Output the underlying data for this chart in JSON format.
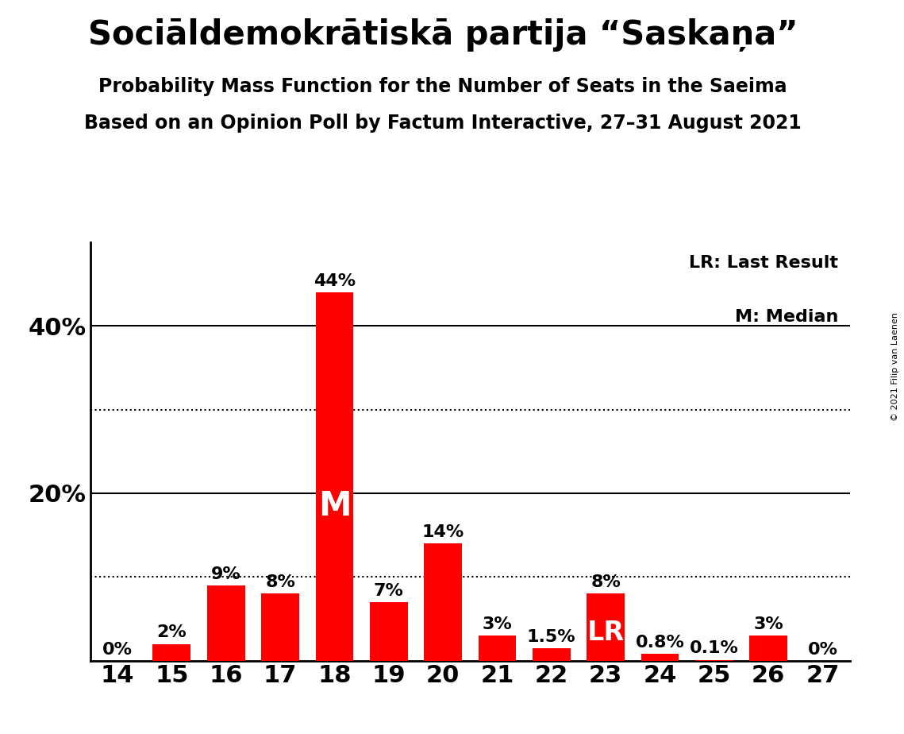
{
  "title": "Sociāldemokrātiskā partija “Saskaņa”",
  "subtitle": "Probability Mass Function for the Number of Seats in the Saeima",
  "subsubtitle": "Based on an Opinion Poll by Factum Interactive, 27–31 August 2021",
  "copyright": "© 2021 Filip van Laenen",
  "seats": [
    14,
    15,
    16,
    17,
    18,
    19,
    20,
    21,
    22,
    23,
    24,
    25,
    26,
    27
  ],
  "values": [
    0.0,
    2.0,
    9.0,
    8.0,
    44.0,
    7.0,
    14.0,
    3.0,
    1.5,
    8.0,
    0.8,
    0.1,
    3.0,
    0.0
  ],
  "labels": [
    "0%",
    "2%",
    "9%",
    "8%",
    "44%",
    "7%",
    "14%",
    "3%",
    "1.5%",
    "8%",
    "0.8%",
    "0.1%",
    "3%",
    "0%"
  ],
  "bar_color": "#ff0000",
  "lr_seat": 23,
  "median_seat": 18,
  "ylim": [
    0,
    50
  ],
  "solid_gridlines": [
    20,
    40
  ],
  "dotted_gridlines": [
    10,
    30
  ],
  "background_color": "#ffffff",
  "title_fontsize": 30,
  "subtitle_fontsize": 17,
  "subsubtitle_fontsize": 17,
  "axis_fontsize": 22,
  "label_fontsize": 16,
  "legend_fontsize": 16,
  "copyright_fontsize": 8,
  "bar_width": 0.7
}
